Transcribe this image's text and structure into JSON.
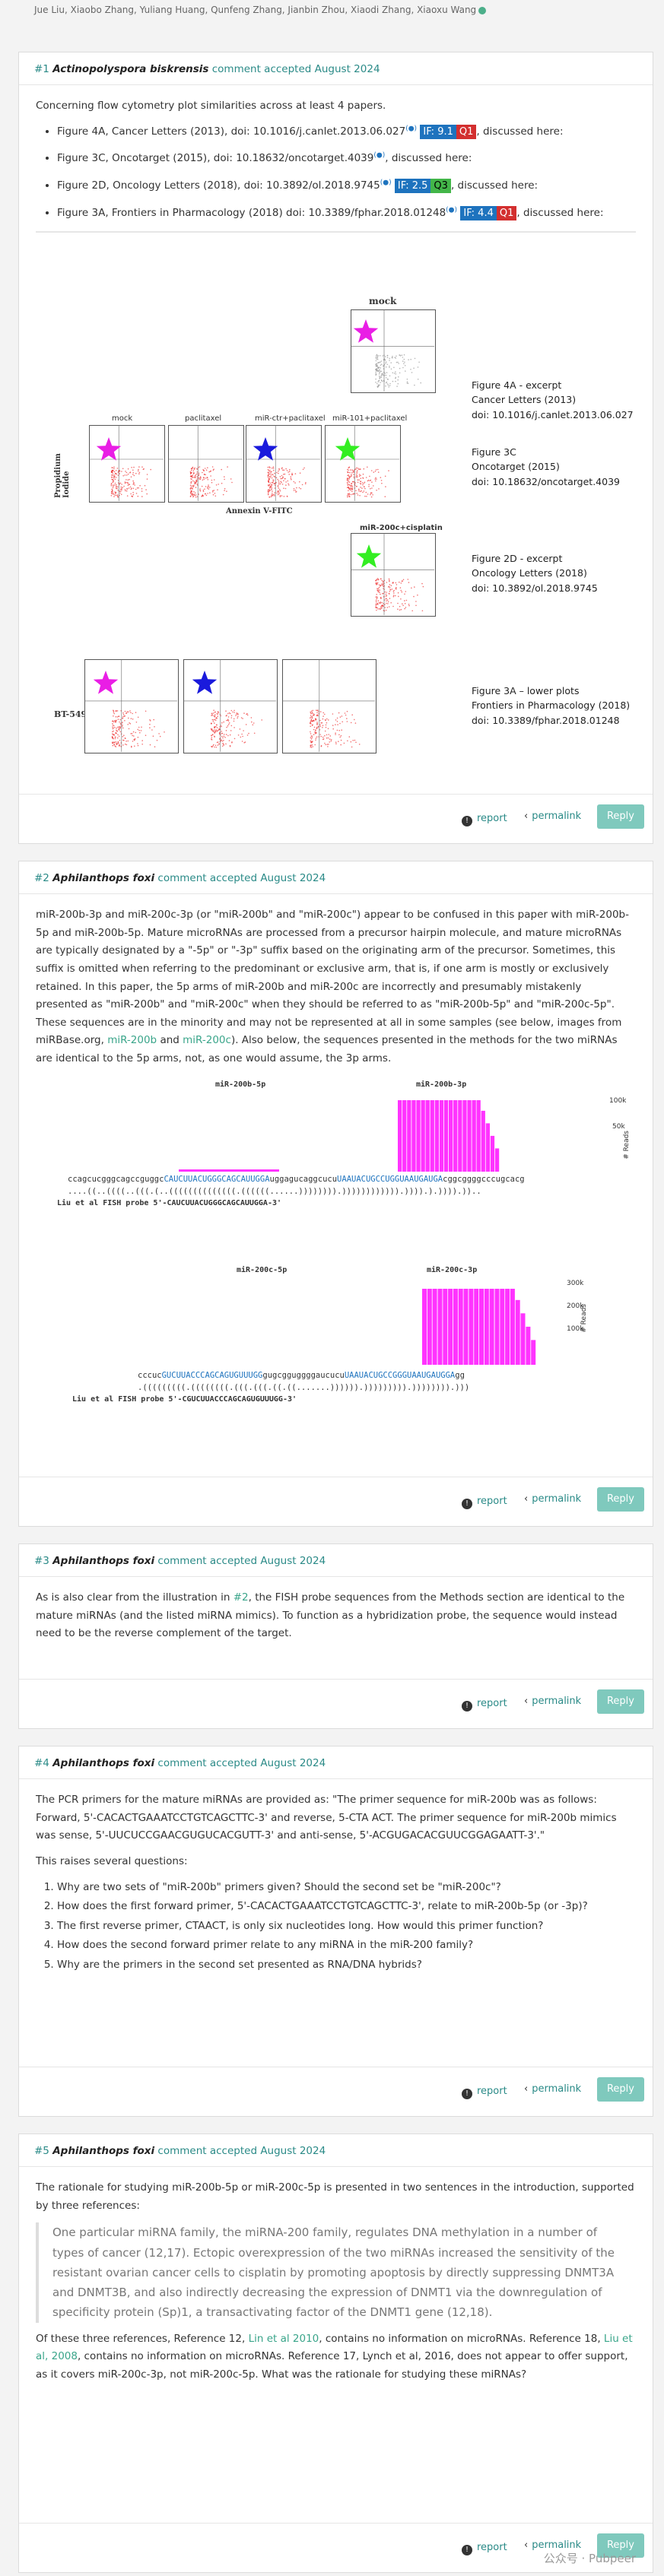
{
  "authors": "Jue Liu, Xiaobo Zhang, Yuliang Huang, Qunfeng Zhang, Jianbin Zhou, Xiaodi Zhang, Xiaoxu Wang",
  "comments": [
    {
      "num": "#1",
      "author": "Actinopolyspora biskrensis",
      "status": "comment accepted",
      "date": "August 2024",
      "intro": "Concerning flow cytometry plot similarities across at least 4 papers.",
      "items": [
        {
          "text": "Figure 4A, Cancer Letters (2013), doi: 10.1016/j.canlet.2013.06.027",
          "if": "IF: 9.1",
          "q": "Q1",
          "tail": ", discussed here:"
        },
        {
          "text": "Figure 3C, Oncotarget (2015), doi: 10.18632/oncotarget.4039",
          "if": "",
          "q": "",
          "tail": ", discussed here:"
        },
        {
          "text": "Figure 2D, Oncology Letters (2018), doi: 10.3892/ol.2018.9745",
          "if": "IF: 2.5",
          "q": "Q3",
          "tail": ", discussed here:"
        },
        {
          "text": "Figure 3A, Frontiers in Pharmacology (2018) doi: 10.3389/fphar.2018.01248",
          "if": "IF: 4.4",
          "q": "Q1",
          "tail": ", discussed here:"
        }
      ],
      "sup_mark": "(●)",
      "figure": {
        "titles": [
          "mock",
          "mock",
          "paclitaxel",
          "miR-ctr+paclitaxel",
          "miR-101+paclitaxel",
          "miR-200c+cisplatin",
          "BT-549"
        ],
        "axis_y": "Propidium Iodide",
        "axis_x": "Annexin V-FITC",
        "captions": [
          [
            "Figure 4A - excerpt",
            "Cancer Letters (2013)",
            "doi: 10.1016/j.canlet.2013.06.027"
          ],
          [
            "Figure 3C",
            "Oncotarget (2015)",
            "doi: 10.18632/oncotarget.4039"
          ],
          [
            "Figure 2D - excerpt",
            "Oncology Letters (2018)",
            "doi: 10.3892/ol.2018.9745"
          ],
          [
            "Figure 3A – lower plots",
            "Frontiers in Pharmacology (2018)",
            "doi: 10.3389/fphar.2018.01248"
          ]
        ]
      }
    },
    {
      "num": "#2",
      "author": "Aphilanthops foxi",
      "status": "comment accepted",
      "date": "August 2024",
      "p1": "miR-200b-3p and miR-200c-3p (or \"miR-200b\" and \"miR-200c\") appear to be confused in this paper with miR-200b-5p and miR-200b-5p. Mature microRNAs are processed from a precursor hairpin molecule, and mature microRNAs are typically designated by a \"-5p\" or \"-3p\" suffix based on the originating arm of the precursor. Sometimes, this suffix is omitted when referring to the predominant or exclusive arm, that is, if one arm is mostly or exclusively retained. In this paper, the 5p arms of miR-200b and miR-200c are incorrectly and presumably mistakenly presented as \"miR-200b\" and \"miR-200c\" when they should be referred to as \"miR-200b-5p\" and \"miR-200c-5p\". These sequences are in the minority and may not be represented at all in some samples (see below, images from miRBase.org,",
      "link1": "miR-200b",
      "and": "and",
      "link2": "miR-200c",
      "p1b": "). Also below, the sequences presented in the methods for the two miRNAs are identical to the 5p arms, not, as one would assume, the 3p arms.",
      "seq": {
        "b_label5": "miR-200b-5p",
        "b_label3": "miR-200b-3p",
        "b_seq": "ccagcucgggcagccguggc",
        "b_seq_blue": "CAUCUUACUGGGCAGCAUUGGA",
        "b_seq_mid": "uggaguc",
        "b_seq_mid2": "aggcucu",
        "b_seq_blue2": "UAAUACUGCCUGGUAAUGAUGA",
        "b_seq_end": "cggcggggcccugcacg",
        "b_struct": "....((..((((..(((.(..((((((((((((((.((((((......)))))))).)))))))))))).)))).).)))).))..",
        "b_probe": "Liu et al FISH probe 5'-CAUCUUACUGGGCAGCAUUGGA-3'",
        "b_ticks": [
          "100k",
          "50k"
        ],
        "reads": "# Reads",
        "c_label5": "miR-200c-5p",
        "c_label3": "miR-200c-3p",
        "c_seq": "cccuc",
        "c_seq_blue": "GUCUUACCCAGCAGUGUUUGG",
        "c_seq_mid": "gugcgguggggaucucu",
        "c_seq_blue2": "UAAUACUGCCGGGUAAUGAUGGA",
        "c_seq_end": "gg",
        "c_struct": ".(((((((((.((((((((.(((.(((.((.((.......)))))).))))))))).)))))))).)))",
        "c_probe": "Liu et al FISH probe 5'-CGUCUUACCCAGCAGUGUUUGG-3'",
        "c_ticks": [
          "300k",
          "200k",
          "100k"
        ]
      }
    },
    {
      "num": "#3",
      "author": "Aphilanthops foxi",
      "status": "comment accepted",
      "date": "August 2024",
      "pre": "As is also clear from the illustration in",
      "link": "#2",
      "post": ", the FISH probe sequences from the Methods section are identical to the mature miRNAs (and the listed miRNA mimics). To function as a hybridization probe, the sequence would instead need to be the reverse complement of the target."
    },
    {
      "num": "#4",
      "author": "Aphilanthops foxi",
      "status": "comment accepted",
      "date": "August 2024",
      "p1": "The PCR primers for the mature miRNAs are provided as: \"The primer sequence for miR-200b was as follows: Forward, 5'-CACACTGAAATCCTGTCAGCTTC-3' and reverse, 5-CTA ACT. The primer sequence for miR-200b mimics was sense, 5'-UUCUCCGAACGUGUCACGUTT-3' and anti-sense, 5'-ACGUGACACGUUCGGAGAATT-3'.\"",
      "p2": "This raises several questions:",
      "questions": [
        "Why are two sets of \"miR-200b\" primers given? Should the second set be \"miR-200c\"?",
        "How does the first forward primer, 5'-CACACTGAAATCCTGTCAGCTTC-3', relate to miR-200b-5p (or -3p)?",
        "The first reverse primer, CTAACT, is only six nucleotides long. How would this primer function?",
        "How does the second forward primer relate to any miRNA in the miR-200 family?",
        "Why are the primers in the second set presented as RNA/DNA hybrids?"
      ]
    },
    {
      "num": "#5",
      "author": "Aphilanthops foxi",
      "status": "comment accepted",
      "date": "August 2024",
      "p1": "The rationale for studying miR-200b-5p or miR-200c-5p is presented in two sentences in the introduction, supported by three references:",
      "quote": "One particular miRNA family, the miRNA-200 family, regulates DNA methylation in a number of types of cancer (12,17). Ectopic overexpression of the two miRNAs increased the sensitivity of the resistant ovarian cancer cells to cisplatin by promoting apoptosis by directly suppressing DNMT3A and DNMT3B, and also indirectly decreasing the expression of DNMT1 via the downregulation of specificity protein (Sp)1, a transactivating factor of the DNMT1 gene (12,18).",
      "p2a": "Of these three references, Reference 12,",
      "link1": "Lin et al 2010",
      "p2b": ", contains no information on microRNAs. Reference 18,",
      "link2": "Liu et al, 2008",
      "p2c": ", contains no information on microRNAs. Reference 17, Lynch et al, 2016, does not appear to offer support, as it covers miR-200c-3p, not miR-200c-5p. What was the rationale for studying these miRNAs?"
    }
  ],
  "actions": {
    "report": "report",
    "permalink": "permalink",
    "reply": "Reply"
  },
  "watermark": "公众号 · Pubpeer",
  "colors": {
    "accent": "#2a8a87",
    "reply": "#7fc9bd",
    "star_magenta": "#e91ee5",
    "star_blue": "#1a1adc",
    "star_green": "#33ee22",
    "reads_bar": "#ff33ff"
  }
}
